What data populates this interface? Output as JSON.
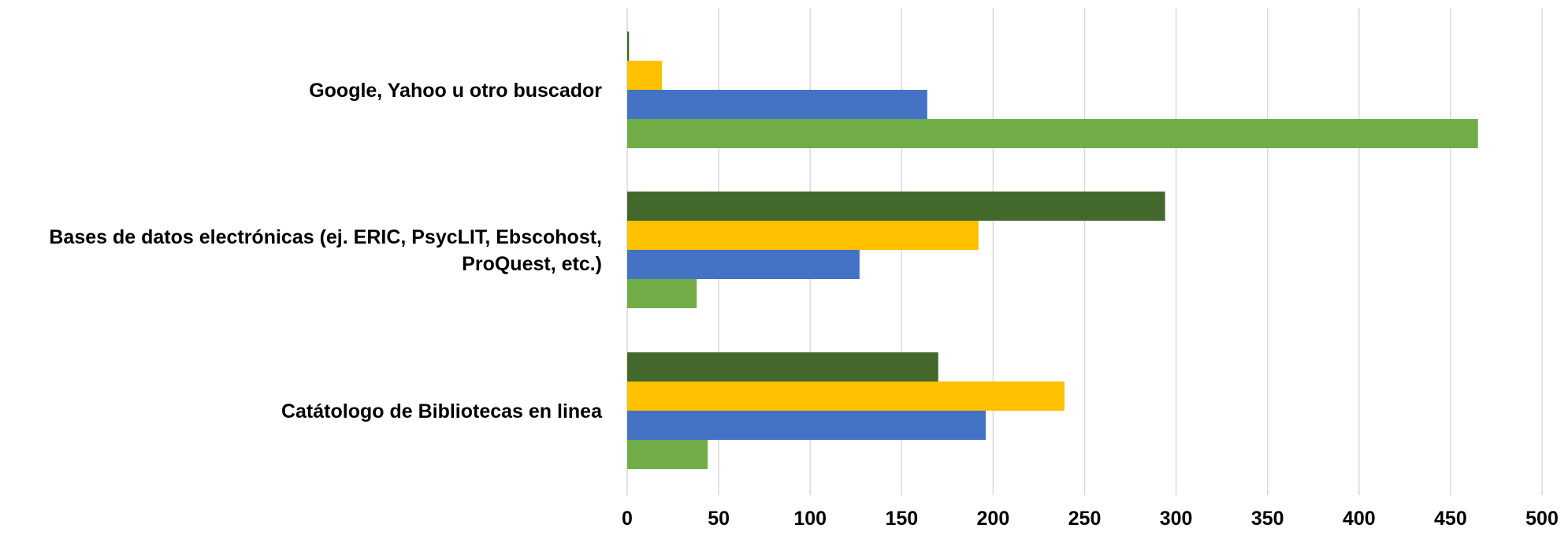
{
  "chart_data": {
    "type": "bar",
    "orientation": "horizontal",
    "categories": [
      "Google, Yahoo u otro buscador",
      "Bases de datos electrónicas (ej. ERIC, PsycLIT, Ebscohost, ProQuest, etc.)",
      "Catátologo de Bibliotecas en linea"
    ],
    "category_lines": [
      [
        "Google, Yahoo u otro buscador"
      ],
      [
        "Bases de datos electrónicas (ej. ERIC, PsycLIT, Ebscohost,",
        "ProQuest, etc.)"
      ],
      [
        "Catátologo de Bibliotecas en linea"
      ]
    ],
    "series": [
      {
        "color": "#70ad47",
        "values": [
          465,
          38,
          44
        ]
      },
      {
        "color": "#4472c4",
        "values": [
          164,
          127,
          196
        ]
      },
      {
        "color": "#ffc000",
        "values": [
          19,
          192,
          239
        ]
      },
      {
        "color": "#43682b",
        "values": [
          1,
          294,
          170
        ]
      }
    ],
    "xlim": [
      0,
      500
    ],
    "ticks": [
      0,
      50,
      100,
      150,
      200,
      250,
      300,
      350,
      400,
      450,
      500
    ],
    "tick_labels": [
      "0",
      "50",
      "100",
      "150",
      "200",
      "250",
      "300",
      "350",
      "400",
      "450",
      "500"
    ],
    "grid": true,
    "legend": "none",
    "title": "",
    "xlabel": "",
    "ylabel": ""
  }
}
